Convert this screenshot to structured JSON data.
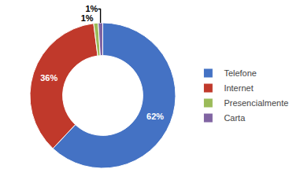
{
  "chart_data": {
    "type": "donut",
    "categories": [
      "Telefone",
      "Internet",
      "Presencialmente",
      "Carta"
    ],
    "values": [
      62,
      36,
      1,
      1
    ],
    "value_labels": [
      "62%",
      "36%",
      "1%",
      "1%"
    ],
    "colors": [
      "#4472C4",
      "#C0392B",
      "#9BBB59",
      "#8064A2"
    ],
    "data_labels": true,
    "legend": "right"
  }
}
